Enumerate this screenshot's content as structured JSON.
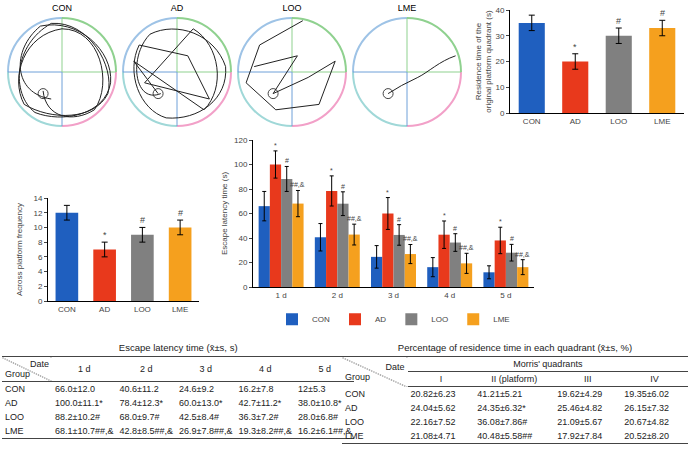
{
  "maze_panels": {
    "labels": [
      "CON",
      "AD",
      "LOO",
      "LME"
    ]
  },
  "chart_data": [
    {
      "type": "bar",
      "ylabel": "Residence time of the\noriginal platform quadrant (s)",
      "categories": [
        "CON",
        "AD",
        "LOO",
        "LME"
      ],
      "values": [
        35,
        20,
        30,
        33
      ],
      "errors": [
        3,
        3,
        3,
        3
      ],
      "significance": [
        null,
        "*",
        "#",
        "#"
      ],
      "colors": [
        "#1f5fbf",
        "#e8391c",
        "#808080",
        "#f5a01e"
      ],
      "ylim": [
        0,
        40
      ],
      "yticks": [
        0,
        10,
        20,
        30,
        40
      ]
    },
    {
      "type": "bar",
      "ylabel": "Across platform frequency",
      "categories": [
        "CON",
        "AD",
        "LOO",
        "LME"
      ],
      "values": [
        12,
        7,
        9,
        10
      ],
      "errors": [
        1,
        1,
        1,
        1
      ],
      "significance": [
        null,
        "*",
        "#",
        "#"
      ],
      "colors": [
        "#1f5fbf",
        "#e8391c",
        "#808080",
        "#f5a01e"
      ],
      "ylim": [
        0,
        14
      ],
      "yticks": [
        0,
        2,
        4,
        6,
        8,
        10,
        12,
        14
      ]
    },
    {
      "type": "bar",
      "ylabel": "Escape latency time (s)",
      "categories": [
        "1 d",
        "2 d",
        "3 d",
        "4 d",
        "5 d"
      ],
      "series": [
        {
          "name": "CON",
          "color": "#1f5fbf",
          "values": [
            66.0,
            40.6,
            24.6,
            16.2,
            12
          ],
          "errors": [
            12.0,
            11.2,
            9.2,
            7.8,
            5.3
          ],
          "significance": [
            null,
            null,
            null,
            null,
            null
          ]
        },
        {
          "name": "AD",
          "color": "#e8391c",
          "values": [
            100.0,
            78.4,
            60.0,
            42.7,
            38.0
          ],
          "errors": [
            11.1,
            12.3,
            13.0,
            11.2,
            10.8
          ],
          "significance": [
            "*",
            "*",
            "*",
            "*",
            "*"
          ]
        },
        {
          "name": "LOO",
          "color": "#808080",
          "values": [
            88.2,
            68.0,
            42.5,
            36.3,
            28.0
          ],
          "errors": [
            10.2,
            9.7,
            8.4,
            7.2,
            6.8
          ],
          "significance": [
            "#",
            "#",
            "#",
            "#",
            "#"
          ]
        },
        {
          "name": "LME",
          "color": "#f5a01e",
          "values": [
            68.1,
            42.8,
            26.9,
            19.3,
            16.2
          ],
          "errors": [
            10.7,
            8.5,
            7.8,
            8.2,
            6.1
          ],
          "significance": [
            "##,&",
            "##,&",
            "##,&",
            "##,&",
            "##,&"
          ]
        }
      ],
      "ylim": [
        0,
        120
      ],
      "yticks": [
        0,
        20,
        40,
        60,
        80,
        100,
        120
      ],
      "legend": "bottom"
    }
  ],
  "tables": [
    {
      "title": "Escape latency time (x̄±s, s)",
      "corner": [
        "Date",
        "Group"
      ],
      "columns": [
        "1 d",
        "2 d",
        "3 d",
        "4 d",
        "5 d"
      ],
      "rows": [
        [
          "CON",
          "66.0±12.0",
          "40.6±11.2",
          "24.6±9.2",
          "16.2±7.8",
          "12±5.3"
        ],
        [
          "AD",
          "100.0±11.1*",
          "78.4±12.3*",
          "60.0±13.0*",
          "42.7±11.2*",
          "38.0±10.8*"
        ],
        [
          "LOO",
          "88.2±10.2#",
          "68.0±9.7#",
          "42.5±8.4#",
          "36.3±7.2#",
          "28.0±6.8#"
        ],
        [
          "LME",
          "68.1±10.7##,&",
          "42.8±8.5##,&",
          "26.9±7.8##,&",
          "19.3±8.2##,&",
          "16.2±6.1##,&"
        ]
      ]
    },
    {
      "title": "Percentage of residence time in each quadrant (x̄±s, %)",
      "corner": [
        "Date",
        "Group"
      ],
      "column_group": "Morris' quadrants",
      "columns": [
        "I",
        "II (platform)",
        "III",
        "IV"
      ],
      "rows": [
        [
          "CON",
          "20.82±6.23",
          "41.21±5.21",
          "19.62±4.29",
          "19.35±6.02"
        ],
        [
          "AD",
          "24.04±5.62",
          "24.35±6.32*",
          "25.46±4.82",
          "26.15±7.32"
        ],
        [
          "LOO",
          "22.16±7.52",
          "36.08±7.86#",
          "21.09±5.67",
          "20.67±4.82"
        ],
        [
          "LME",
          "21.08±4.71",
          "40.48±5.58##",
          "17.92±7.84",
          "20.52±8.20"
        ]
      ]
    }
  ]
}
